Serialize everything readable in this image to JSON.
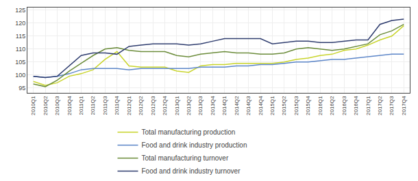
{
  "chart_data": {
    "type": "line",
    "categories": [
      "2010Q1",
      "2010Q2",
      "2010Q3",
      "2010Q4",
      "2011Q1",
      "2011Q2",
      "2011Q3",
      "2011Q4",
      "2012Q1",
      "2012Q2",
      "2012Q3",
      "2012Q4",
      "2013Q1",
      "2013Q2",
      "2013Q3",
      "2013Q4",
      "2014Q1",
      "2014Q2",
      "2014Q3",
      "2014Q4",
      "2015Q1",
      "2015Q2",
      "2015Q3",
      "2015Q4",
      "2016Q1",
      "2016Q2",
      "2016Q3",
      "2016Q4",
      "2017Q1",
      "2017Q2",
      "2017Q3",
      "2017Q4"
    ],
    "series": [
      {
        "name": "Total manufacturing production",
        "color": "#c8d42a",
        "values": [
          97.5,
          96.0,
          97.0,
          99.5,
          100.5,
          102.0,
          106.0,
          109.0,
          103.5,
          103.0,
          103.0,
          103.0,
          101.5,
          101.0,
          103.5,
          104.0,
          104.0,
          104.5,
          104.5,
          104.5,
          104.5,
          105.0,
          106.0,
          106.5,
          107.5,
          108.0,
          109.5,
          110.0,
          111.5,
          113.5,
          115.0,
          119.0
        ]
      },
      {
        "name": "Food and drink industry production",
        "color": "#5b85c8",
        "values": [
          99.5,
          99.0,
          99.5,
          100.5,
          102.0,
          102.5,
          102.5,
          102.5,
          102.0,
          102.5,
          102.5,
          102.5,
          102.5,
          102.5,
          103.0,
          103.0,
          103.0,
          103.5,
          103.5,
          104.0,
          104.0,
          104.5,
          105.0,
          105.0,
          105.5,
          106.0,
          106.0,
          106.5,
          107.0,
          107.5,
          108.0,
          108.0
        ]
      },
      {
        "name": "Total manufacturing turnover",
        "color": "#6b8c3a",
        "values": [
          96.5,
          95.5,
          98.0,
          101.5,
          104.5,
          107.5,
          110.0,
          110.5,
          109.5,
          109.0,
          109.0,
          109.0,
          107.5,
          107.0,
          108.0,
          108.5,
          109.0,
          108.5,
          108.5,
          108.0,
          108.0,
          108.5,
          110.0,
          110.5,
          110.0,
          109.5,
          110.0,
          111.0,
          112.0,
          115.5,
          117.0,
          119.5
        ]
      },
      {
        "name": "Food and drink industry turnover",
        "color": "#2e3c6e",
        "values": [
          99.5,
          99.0,
          99.5,
          103.5,
          107.5,
          108.5,
          108.5,
          108.0,
          111.0,
          111.5,
          112.0,
          112.0,
          112.0,
          111.5,
          112.0,
          113.0,
          114.0,
          114.0,
          114.0,
          114.0,
          112.0,
          112.5,
          113.0,
          113.0,
          112.5,
          112.5,
          113.0,
          113.5,
          113.5,
          119.5,
          121.0,
          121.5
        ]
      }
    ],
    "ylim": [
      93,
      126
    ],
    "yticks": [
      95,
      100,
      105,
      110,
      115,
      120,
      125
    ],
    "grid": true,
    "legend": "bottom"
  }
}
